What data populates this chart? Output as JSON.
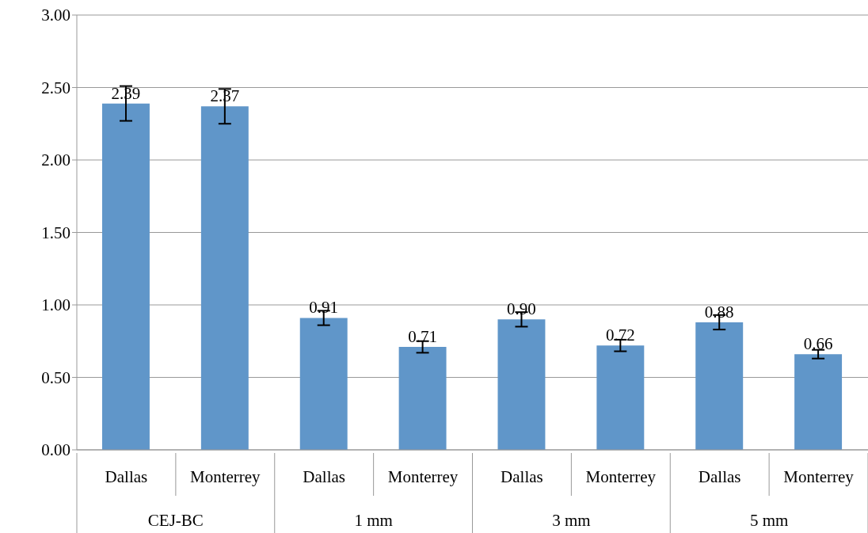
{
  "chart_data": {
    "type": "bar",
    "categories": [
      "Dallas",
      "Monterrey",
      "Dallas",
      "Monterrey",
      "Dallas",
      "Monterrey",
      "Dallas",
      "Monterrey"
    ],
    "values": [
      2.39,
      2.37,
      0.91,
      0.71,
      0.9,
      0.72,
      0.88,
      0.66
    ],
    "value_labels": [
      "2.39",
      "2.37",
      "0.91",
      "0.71",
      "0.90",
      "0.72",
      "0.88",
      "0.66"
    ],
    "errors": [
      0.12,
      0.12,
      0.05,
      0.04,
      0.05,
      0.04,
      0.05,
      0.03
    ],
    "color": "#6096c9",
    "ylim": [
      0,
      3
    ],
    "yticks": [
      {
        "value": 0,
        "label": "0.00"
      },
      {
        "value": 0.5,
        "label": "0.50"
      },
      {
        "value": 1,
        "label": "1.00"
      },
      {
        "value": 1.5,
        "label": "1.50"
      },
      {
        "value": 2,
        "label": "2.00"
      },
      {
        "value": 2.5,
        "label": "2.50"
      },
      {
        "value": 3,
        "label": "3.00"
      }
    ],
    "grid": "y",
    "annotations": [
      "CEJ-BC",
      "1 mm",
      "3 mm",
      "5 mm"
    ]
  }
}
